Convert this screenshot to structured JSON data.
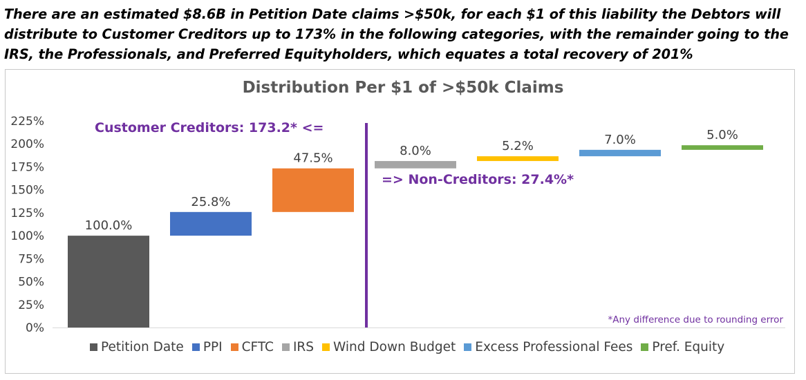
{
  "headline": "There are an estimated $8.6B in Petition Date claims >$50k, for each $1 of this liability the Debtors will distribute to Customer Creditors up to 173% in the following categories, with the remainder going to the IRS, the Professionals, and Preferred Equityholders, which equates a total recovery of 201%",
  "chart_data": {
    "type": "bar",
    "subtype": "waterfall",
    "title": "Distribution Per $1 of >$50k Claims",
    "xlabel": "",
    "ylabel": "",
    "ylim": [
      0,
      225
    ],
    "yticks": [
      "0%",
      "25%",
      "50%",
      "75%",
      "100%",
      "125%",
      "150%",
      "175%",
      "200%",
      "225%"
    ],
    "ytick_values": [
      0,
      25,
      50,
      75,
      100,
      125,
      150,
      175,
      200,
      225
    ],
    "grid": false,
    "legend_position": "bottom",
    "categories": [
      "Petition Date",
      "PPI",
      "CFTC",
      "IRS",
      "Wind Down Budget",
      "Excess Professional Fees",
      "Pref. Equity"
    ],
    "series": [
      {
        "name": "Petition Date",
        "start": 0,
        "value": 100.0,
        "label": "100.0%",
        "color": "#595959"
      },
      {
        "name": "PPI",
        "start": 100.0,
        "value": 25.8,
        "label": "25.8%",
        "color": "#4472c4"
      },
      {
        "name": "CFTC",
        "start": 125.8,
        "value": 47.5,
        "label": "47.5%",
        "color": "#ed7d31"
      },
      {
        "name": "IRS",
        "start": 173.3,
        "value": 8.0,
        "label": "8.0%",
        "color": "#a5a5a5"
      },
      {
        "name": "Wind Down Budget",
        "start": 181.3,
        "value": 5.2,
        "label": "5.2%",
        "color": "#ffc000"
      },
      {
        "name": "Excess Professional Fees",
        "start": 186.5,
        "value": 7.0,
        "label": "7.0%",
        "color": "#5b9bd5"
      },
      {
        "name": "Pref. Equity",
        "start": 193.5,
        "value": 5.0,
        "label": "5.0%",
        "color": "#70ad47"
      }
    ],
    "annotations": {
      "left": "Customer Creditors: 173.2* <=",
      "right": "=> Non-Creditors: 27.4%*",
      "footnote": "*Any difference due to rounding error",
      "divider_color": "#7030a0"
    }
  }
}
